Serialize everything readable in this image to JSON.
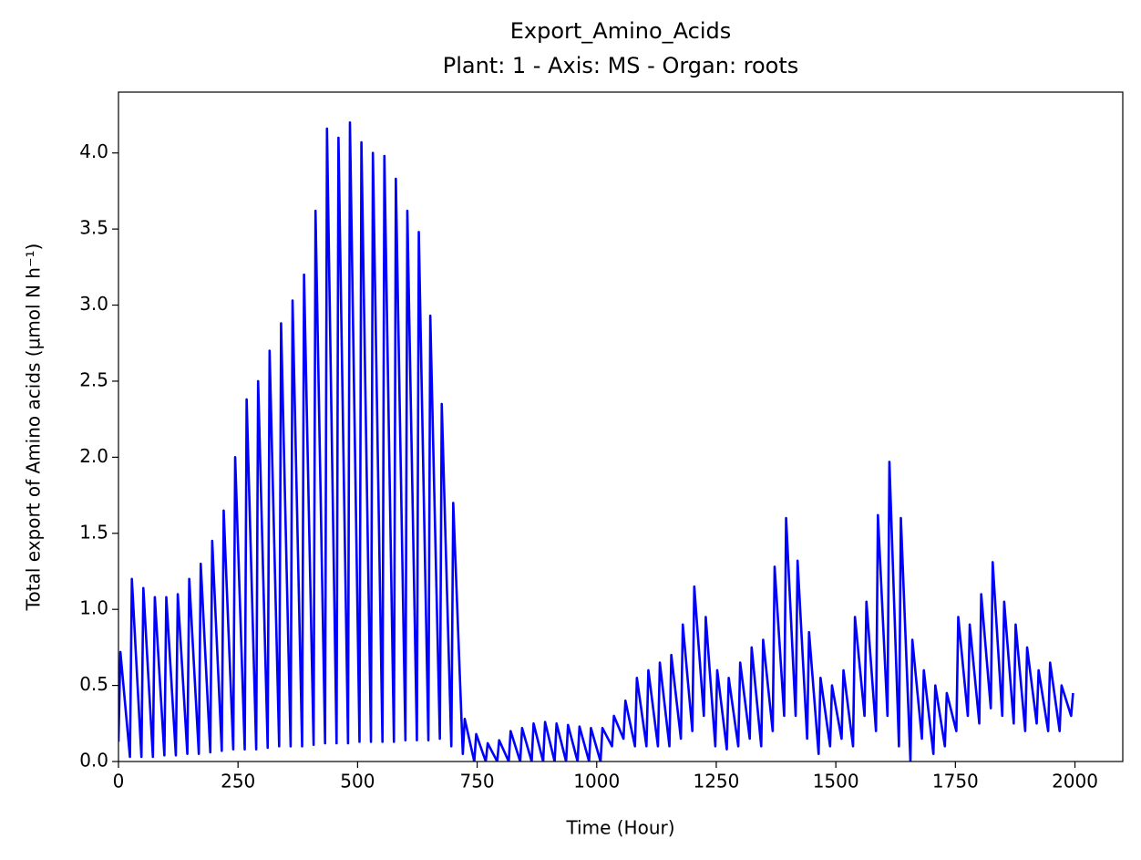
{
  "chart_data": {
    "type": "line",
    "title": "Export_Amino_Acids",
    "subtitle": "Plant: 1 - Axis: MS - Organ: roots",
    "x_label": "Time (Hour)",
    "y_label": "Total export of Amino acids (µmol N h⁻¹)",
    "xlim": [
      0,
      2100
    ],
    "ylim": [
      0,
      4.4
    ],
    "xticks": [
      0,
      250,
      500,
      750,
      1000,
      1250,
      1500,
      1750,
      2000
    ],
    "yticks": [
      {
        "value": 0,
        "label": "0.0"
      },
      0.5,
      {
        "value": 1,
        "label": "1.0"
      },
      1.5,
      {
        "value": 2,
        "label": "2.0"
      },
      2.5,
      {
        "value": 3,
        "label": "3.0"
      },
      3.5,
      {
        "value": 4,
        "label": "4.0"
      }
    ],
    "x": [
      0,
      4,
      24,
      28,
      48,
      52,
      72,
      76,
      96,
      100,
      120,
      124,
      144,
      148,
      168,
      172,
      192,
      196,
      216,
      220,
      240,
      244,
      264,
      268,
      288,
      292,
      312,
      316,
      336,
      340,
      360,
      364,
      384,
      388,
      408,
      412,
      432,
      436,
      456,
      460,
      480,
      484,
      504,
      508,
      528,
      532,
      552,
      556,
      576,
      580,
      600,
      604,
      624,
      628,
      648,
      652,
      672,
      676,
      696,
      700,
      720,
      724,
      744,
      748,
      768,
      772,
      792,
      796,
      816,
      820,
      840,
      844,
      864,
      868,
      888,
      892,
      912,
      916,
      936,
      940,
      960,
      964,
      984,
      988,
      1008,
      1012,
      1032,
      1036,
      1056,
      1060,
      1080,
      1084,
      1104,
      1108,
      1128,
      1132,
      1152,
      1156,
      1176,
      1180,
      1200,
      1204,
      1224,
      1228,
      1248,
      1252,
      1272,
      1276,
      1296,
      1300,
      1320,
      1324,
      1344,
      1348,
      1368,
      1372,
      1392,
      1396,
      1416,
      1420,
      1440,
      1444,
      1464,
      1468,
      1488,
      1492,
      1512,
      1516,
      1536,
      1540,
      1560,
      1564,
      1584,
      1588,
      1608,
      1612,
      1632,
      1636,
      1656,
      1660,
      1680,
      1684,
      1704,
      1708,
      1728,
      1732,
      1752,
      1756,
      1776,
      1780,
      1800,
      1804,
      1824,
      1828,
      1848,
      1852,
      1872,
      1876,
      1896,
      1900,
      1920,
      1924,
      1944,
      1948,
      1968,
      1972,
      1992,
      1996
    ],
    "series": [
      {
        "name": "Export_Amino_Acids",
        "color": "#0000ff",
        "values": [
          0.13,
          0.72,
          0.03,
          1.2,
          0.03,
          1.14,
          0.03,
          1.08,
          0.04,
          1.08,
          0.04,
          1.1,
          0.05,
          1.2,
          0.05,
          1.3,
          0.06,
          1.45,
          0.07,
          1.65,
          0.08,
          2.0,
          0.08,
          2.38,
          0.08,
          2.5,
          0.09,
          2.7,
          0.1,
          2.88,
          0.1,
          3.03,
          0.1,
          3.2,
          0.11,
          3.62,
          0.12,
          4.16,
          0.12,
          4.1,
          0.12,
          4.2,
          0.13,
          4.07,
          0.13,
          4.0,
          0.13,
          3.98,
          0.13,
          3.83,
          0.14,
          3.62,
          0.14,
          3.48,
          0.14,
          2.93,
          0.15,
          2.35,
          0.1,
          1.7,
          0.05,
          0.28,
          0.0,
          0.18,
          0.0,
          0.12,
          0.0,
          0.14,
          0.0,
          0.2,
          0.0,
          0.22,
          0.0,
          0.25,
          0.0,
          0.26,
          0.0,
          0.25,
          0.0,
          0.24,
          0.0,
          0.23,
          0.0,
          0.22,
          0.0,
          0.22,
          0.1,
          0.3,
          0.15,
          0.4,
          0.1,
          0.55,
          0.1,
          0.6,
          0.1,
          0.65,
          0.1,
          0.7,
          0.15,
          0.9,
          0.2,
          1.15,
          0.3,
          0.95,
          0.1,
          0.6,
          0.08,
          0.55,
          0.1,
          0.65,
          0.15,
          0.75,
          0.1,
          0.8,
          0.2,
          1.28,
          0.3,
          1.6,
          0.3,
          1.32,
          0.15,
          0.85,
          0.05,
          0.55,
          0.1,
          0.5,
          0.15,
          0.6,
          0.1,
          0.95,
          0.3,
          1.05,
          0.2,
          1.62,
          0.3,
          1.97,
          0.1,
          1.6,
          0.0,
          0.8,
          0.15,
          0.6,
          0.05,
          0.5,
          0.1,
          0.45,
          0.2,
          0.95,
          0.3,
          0.9,
          0.25,
          1.1,
          0.35,
          1.31,
          0.3,
          1.05,
          0.25,
          0.9,
          0.2,
          0.75,
          0.25,
          0.6,
          0.2,
          0.65,
          0.2,
          0.5,
          0.3,
          0.45
        ]
      }
    ]
  }
}
